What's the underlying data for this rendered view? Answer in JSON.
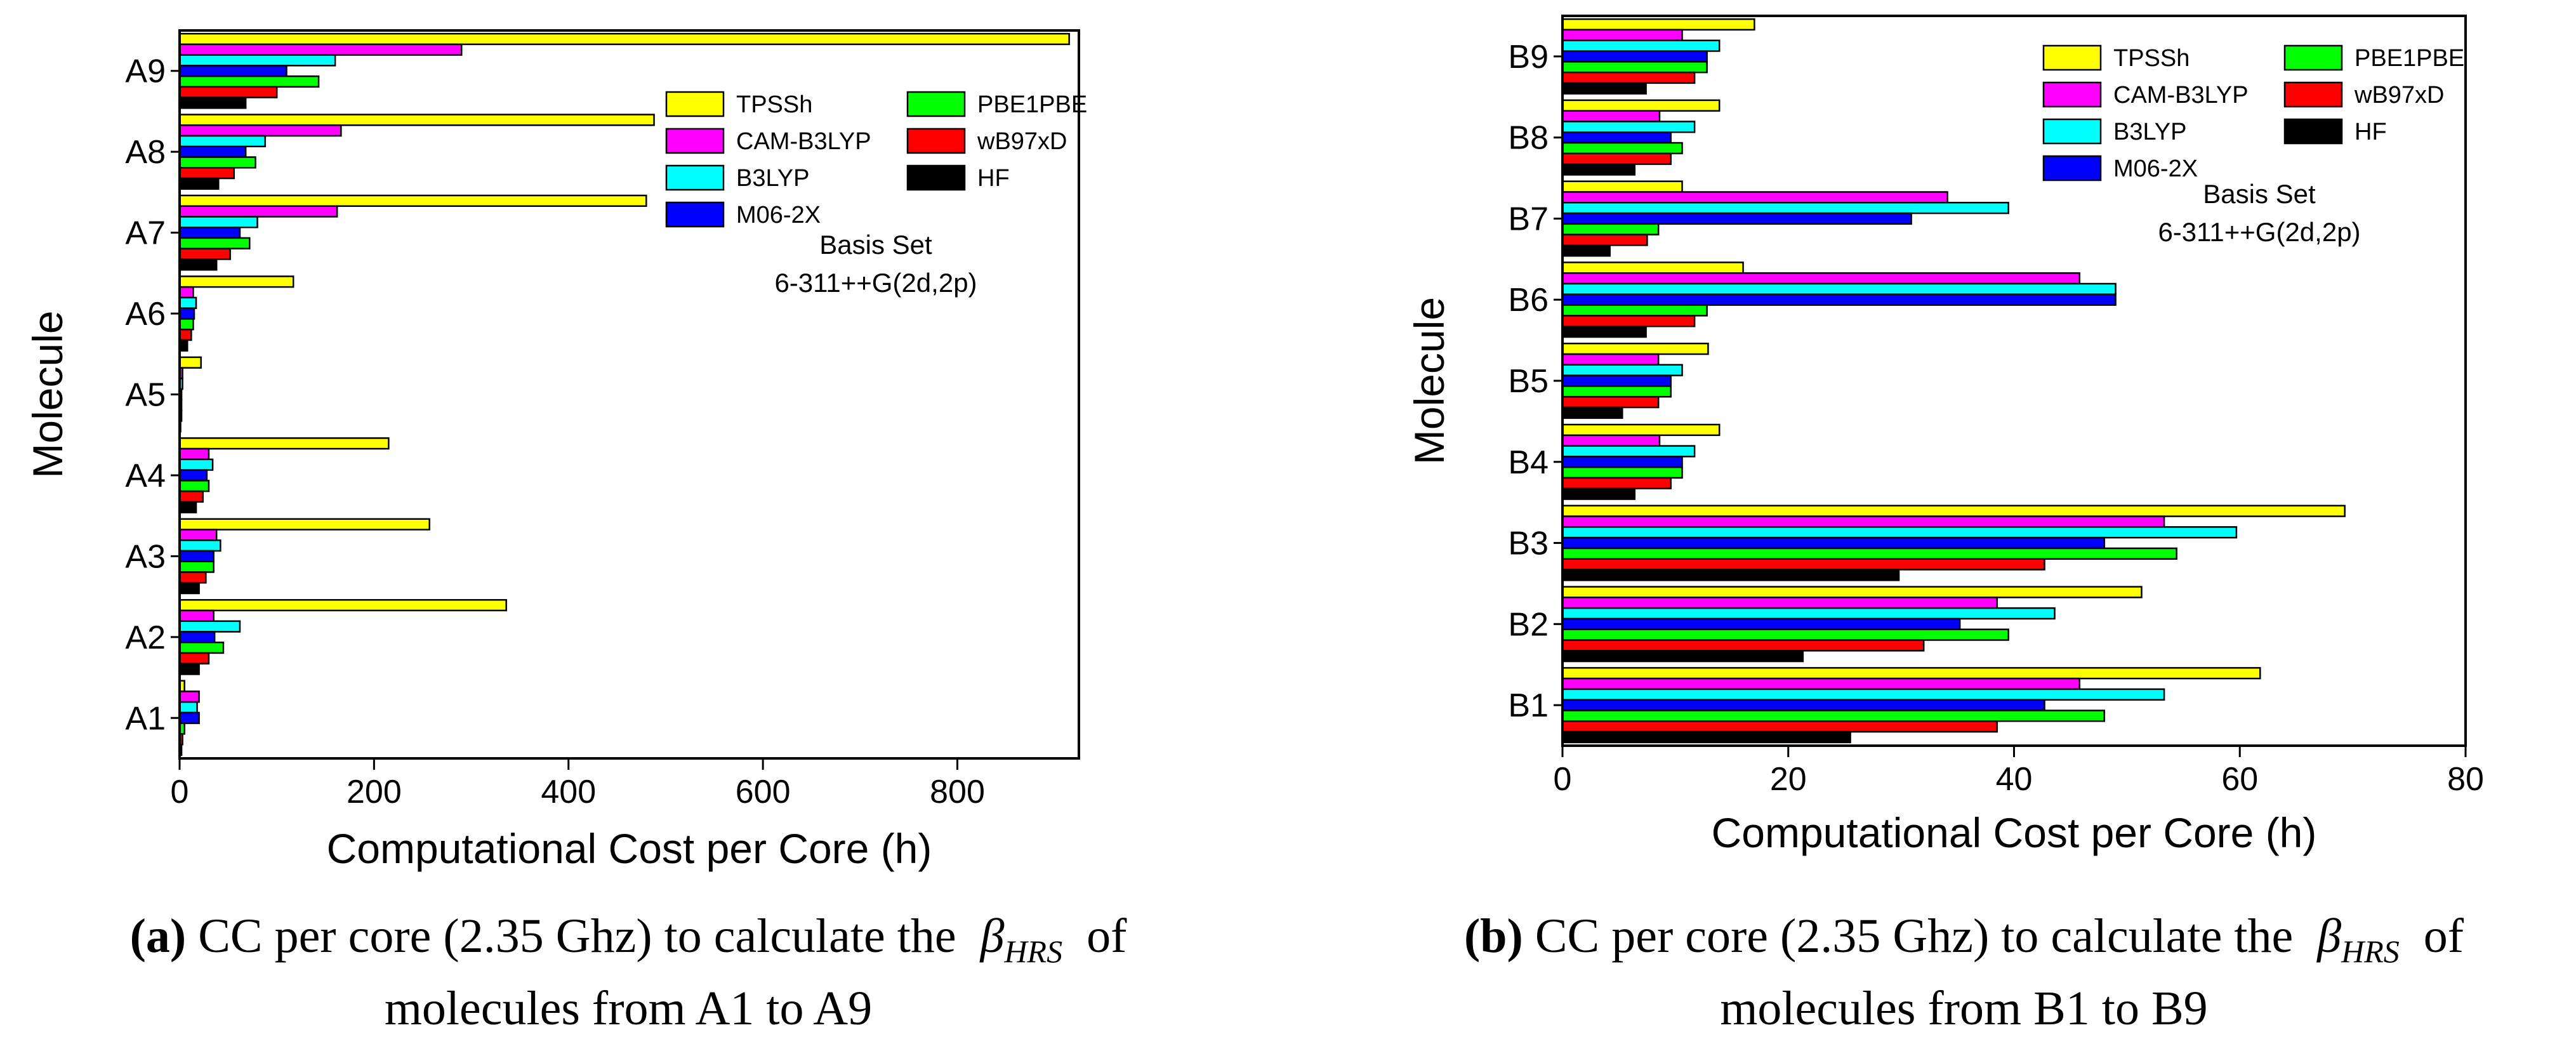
{
  "chart_data": [
    {
      "id": "a",
      "type": "bar",
      "orientation": "horizontal",
      "categories": [
        "A1",
        "A2",
        "A3",
        "A4",
        "A5",
        "A6",
        "A7",
        "A8",
        "A9"
      ],
      "series": [
        {
          "name": "TPSSh",
          "color": "#ffff00",
          "values": [
            5,
            336,
            257,
            215,
            22,
            117,
            480,
            488,
            915
          ]
        },
        {
          "name": "CAM-B3LYP",
          "color": "#ff00ff",
          "values": [
            20,
            35,
            38,
            30,
            3,
            14,
            162,
            166,
            290
          ]
        },
        {
          "name": "B3LYP",
          "color": "#00ffff",
          "values": [
            18,
            62,
            42,
            34,
            3,
            17,
            80,
            88,
            160
          ]
        },
        {
          "name": "M06-2X",
          "color": "#0000ff",
          "values": [
            20,
            36,
            35,
            28,
            2,
            15,
            62,
            68,
            110
          ]
        },
        {
          "name": "PBE1PBE",
          "color": "#00ff00",
          "values": [
            5,
            45,
            35,
            30,
            2,
            14,
            72,
            78,
            143
          ]
        },
        {
          "name": "wB97xD",
          "color": "#ff0000",
          "values": [
            3,
            30,
            27,
            24,
            2,
            12,
            52,
            56,
            100
          ]
        },
        {
          "name": "HF",
          "color": "#000000",
          "values": [
            2,
            20,
            20,
            17,
            1,
            8,
            38,
            40,
            68
          ]
        }
      ],
      "xlabel": "Computational Cost per Core (h)",
      "ylabel": "Molecule",
      "xlim": [
        0,
        925
      ],
      "xticks": [
        0,
        200,
        400,
        600,
        800
      ],
      "legend_position": "top-right",
      "annotation_lines": [
        "Basis Set",
        "6-311++G(2d,2p)"
      ],
      "caption": {
        "label": "(a)",
        "text": "CC per core (2.35 Ghz) to calculate the",
        "symbol": "β",
        "subscript": "HRS",
        "after": "of",
        "line2": "molecules from A1 to A9"
      }
    },
    {
      "id": "b",
      "type": "bar",
      "orientation": "horizontal",
      "categories": [
        "B1",
        "B2",
        "B3",
        "B4",
        "B5",
        "B6",
        "B7",
        "B8",
        "B9"
      ],
      "series": [
        {
          "name": "TPSSh",
          "color": "#ffff00",
          "values": [
            61.8,
            51.3,
            69.3,
            13.9,
            12.9,
            16,
            10.6,
            13.9,
            17
          ]
        },
        {
          "name": "CAM-B3LYP",
          "color": "#ff00ff",
          "values": [
            45.8,
            38.5,
            53.3,
            8.6,
            8.5,
            45.8,
            34.1,
            8.6,
            10.6
          ]
        },
        {
          "name": "B3LYP",
          "color": "#00ffff",
          "values": [
            53.3,
            43.6,
            59.7,
            11.7,
            10.6,
            49,
            39.5,
            11.7,
            13.9
          ]
        },
        {
          "name": "M06-2X",
          "color": "#0000ff",
          "values": [
            42.7,
            35.2,
            48,
            10.6,
            9.6,
            49,
            30.9,
            9.6,
            12.8
          ]
        },
        {
          "name": "PBE1PBE",
          "color": "#00ff00",
          "values": [
            48,
            39.5,
            54.4,
            10.6,
            9.6,
            12.8,
            8.5,
            10.6,
            12.8
          ]
        },
        {
          "name": "wB97xD",
          "color": "#ff0000",
          "values": [
            38.5,
            32,
            42.7,
            9.6,
            8.5,
            11.7,
            7.5,
            9.6,
            11.7
          ]
        },
        {
          "name": "HF",
          "color": "#000000",
          "values": [
            25.5,
            21.3,
            29.8,
            6.4,
            5.3,
            7.4,
            4.2,
            6.4,
            7.4
          ]
        }
      ],
      "xlabel": "Computational Cost per Core (h)",
      "ylabel": "Molecule",
      "xlim": [
        0,
        80
      ],
      "xticks": [
        0,
        20,
        40,
        60,
        80
      ],
      "legend_position": "top-right",
      "annotation_lines": [
        "Basis Set",
        "6-311++G(2d,2p)"
      ],
      "caption": {
        "label": "(b)",
        "text": "CC per core (2.35 Ghz) to calculate the",
        "symbol": "β",
        "subscript": "HRS",
        "after": "of",
        "line2": "molecules from B1 to B9"
      }
    }
  ]
}
